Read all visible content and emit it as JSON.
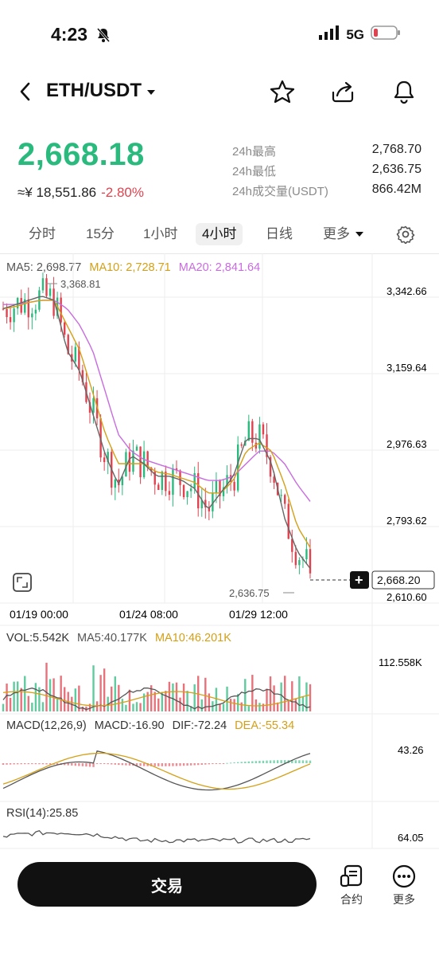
{
  "status": {
    "time": "4:23",
    "network": "5G"
  },
  "header": {
    "pair": "ETH/USDT"
  },
  "ticker": {
    "price": "2,668.18",
    "cny": "≈¥ 18,551.86",
    "change": "-2.80%",
    "high_label": "24h最高",
    "high_value": "2,768.70",
    "low_label": "24h最低",
    "low_value": "2,636.75",
    "vol_label": "24h成交量(USDT)",
    "vol_value": "866.42M"
  },
  "intervals": [
    "分时",
    "15分",
    "1小时",
    "4小时",
    "日线",
    "更多"
  ],
  "active_interval": "4小时",
  "ma_legend": {
    "ma5": "MA5: 2,698.77",
    "ma10": "MA10: 2,728.71",
    "ma20": "MA20: 2,841.64"
  },
  "price_axis": [
    "3,342.66",
    "3,159.64",
    "2,976.63",
    "2,793.62",
    "2,610.60"
  ],
  "x_labels": [
    "01/19 00:00",
    "01/24 08:00",
    "01/29 12:00"
  ],
  "annotations": {
    "high": "3,368.81",
    "low": "2,636.75",
    "last": "2,668.20"
  },
  "volume": {
    "legend_vol": "VOL:5.542K",
    "legend_ma5": "MA5:40.177K",
    "legend_ma10": "MA10:46.201K",
    "max": "112.558K"
  },
  "macd": {
    "legend_label": "MACD(12,26,9)",
    "legend_macd": "MACD:-16.90",
    "legend_dif": "DIF:-72.24",
    "legend_dea": "DEA:-55.34",
    "max": "43.26"
  },
  "rsi": {
    "legend": "RSI(14):25.85",
    "max": "64.05"
  },
  "footer": {
    "trade": "交易",
    "contract": "合约",
    "more": "更多"
  },
  "colors": {
    "up": "#2aba7e",
    "down": "#e0434f",
    "ma5": "#555555",
    "ma10": "#d4a017",
    "ma20": "#c86be0"
  },
  "chart_data": {
    "type": "candlestick",
    "y_range": [
      2610.6,
      3342.66
    ],
    "x_ticks": [
      "01/19 00:00",
      "01/24 08:00",
      "01/29 12:00"
    ],
    "high": 3368.81,
    "low": 2636.75,
    "last": 2668.2,
    "ma5_close_trend": [
      3300,
      3310,
      3320,
      3330,
      3320,
      3200,
      3150,
      3050,
      2950,
      2880,
      2950,
      2930,
      2900,
      2900,
      2890,
      2870,
      2820,
      2860,
      2900,
      2990,
      2990,
      2930,
      2800,
      2720,
      2680
    ],
    "ma10_trend": [
      3300,
      3305,
      3315,
      3320,
      3320,
      3260,
      3200,
      3100,
      3000,
      2930,
      2930,
      2930,
      2910,
      2905,
      2895,
      2885,
      2860,
      2860,
      2890,
      2960,
      2980,
      2960,
      2880,
      2780,
      2730
    ],
    "ma20_trend": [
      3310,
      3310,
      3315,
      3320,
      3320,
      3300,
      3260,
      3200,
      3100,
      3000,
      2960,
      2940,
      2930,
      2920,
      2910,
      2900,
      2890,
      2890,
      2900,
      2930,
      2960,
      2960,
      2930,
      2880,
      2840
    ]
  }
}
